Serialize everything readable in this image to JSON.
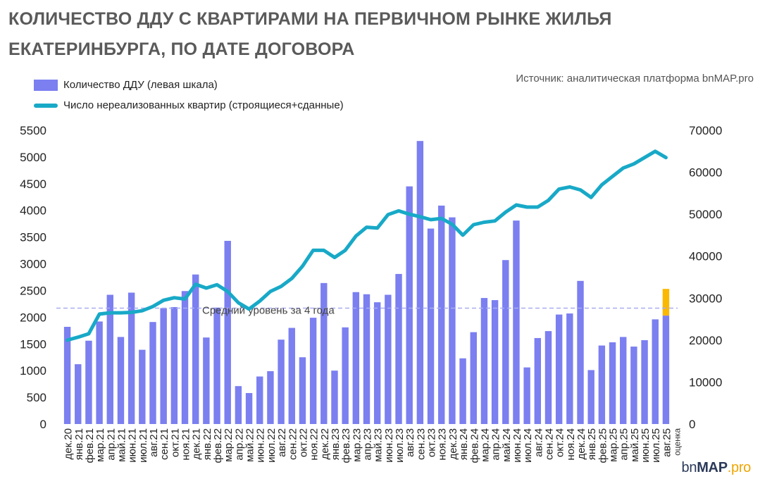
{
  "header": {
    "title_line1": "КОЛИЧЕСТВО ДДУ С КВАРТИРАМИ НА ПЕРВИЧНОМ РЫНКЕ ЖИЛЬЯ",
    "title_line2": "ЕКАТЕРИНБУРГА, ПО ДАТЕ ДОГОВОРА",
    "source": "Источник: аналитическая платформа bnMAP.pro"
  },
  "logo": {
    "prefix": "bn",
    "bold": "MAP",
    "suffix": ".pro"
  },
  "colors": {
    "bar": "#7b7ff0",
    "line": "#18a9c7",
    "estimate": "#fbb800",
    "avg_line": "#a9acf0"
  },
  "chart_data": {
    "type": "bar+line",
    "categories": [
      "дек.20",
      "янв.21",
      "фев.21",
      "мар.21",
      "апр.21",
      "май.21",
      "июн.21",
      "июл.21",
      "авг.21",
      "сен.21",
      "окт.21",
      "ноя.21",
      "дек.21",
      "янв.22",
      "фев.22",
      "мар.22",
      "апр.22",
      "май.22",
      "июн.22",
      "июл.22",
      "авг.22",
      "сен.22",
      "окт.22",
      "ноя.22",
      "дек.22",
      "янв.23",
      "фев.23",
      "мар.23",
      "апр.23",
      "май.23",
      "июн.23",
      "июл.23",
      "авг.23",
      "сен.23",
      "окт.23",
      "ноя.23",
      "дек.23",
      "янв.24",
      "фев.24",
      "мар.24",
      "апр.24",
      "май.24",
      "июн.24",
      "июл.24",
      "авг.24",
      "сен.24",
      "окт.24",
      "ноя.24",
      "дек.24",
      "янв.25",
      "фев.25",
      "мар.25",
      "апр.25",
      "май.25",
      "июн.25",
      "июл.25",
      "авг.25"
    ],
    "last_label_note": "оценка",
    "series": [
      {
        "name": "Количество ДДУ (левая шкала)",
        "type": "bar",
        "axis": "left",
        "values": [
          1820,
          1120,
          1560,
          1920,
          2420,
          1630,
          2460,
          1390,
          1910,
          2170,
          2190,
          2490,
          2800,
          1620,
          2180,
          3430,
          710,
          580,
          890,
          990,
          1580,
          1800,
          1250,
          1990,
          2640,
          1000,
          1810,
          2470,
          2430,
          2280,
          2420,
          2810,
          4450,
          5300,
          3660,
          4090,
          3870,
          1230,
          1720,
          2360,
          2320,
          3070,
          3810,
          1060,
          1610,
          1740,
          2050,
          2070,
          2680,
          1010,
          1470,
          1530,
          1630,
          1450,
          1570,
          1960,
          2030
        ]
      },
      {
        "name": "Оценка",
        "type": "bar-stacked",
        "axis": "left",
        "values": [
          0,
          0,
          0,
          0,
          0,
          0,
          0,
          0,
          0,
          0,
          0,
          0,
          0,
          0,
          0,
          0,
          0,
          0,
          0,
          0,
          0,
          0,
          0,
          0,
          0,
          0,
          0,
          0,
          0,
          0,
          0,
          0,
          0,
          0,
          0,
          0,
          0,
          0,
          0,
          0,
          0,
          0,
          0,
          0,
          0,
          0,
          0,
          0,
          0,
          0,
          0,
          0,
          0,
          0,
          0,
          0,
          500
        ]
      },
      {
        "name": "Число нереализованных квартир (строящиеся+сданные)",
        "type": "line",
        "axis": "right",
        "values": [
          20000,
          20700,
          21500,
          26200,
          26500,
          26500,
          26600,
          27000,
          28000,
          29500,
          30100,
          29800,
          33300,
          32400,
          33200,
          31600,
          28900,
          27400,
          29300,
          31600,
          32800,
          34700,
          37600,
          41400,
          41400,
          39700,
          41400,
          44800,
          46900,
          46700,
          49900,
          50800,
          50000,
          49400,
          48700,
          49000,
          47600,
          45000,
          47500,
          48100,
          48400,
          50500,
          52200,
          51700,
          51700,
          53300,
          56000,
          56500,
          55800,
          54000,
          57000,
          59000,
          61000,
          62000,
          63500,
          65000,
          63500
        ]
      }
    ],
    "average": {
      "label": "Средний уровень за 4 года",
      "value": 2170
    },
    "yleft": {
      "min": 0,
      "max": 5500,
      "ticks": [
        0,
        500,
        1000,
        1500,
        2000,
        2500,
        3000,
        3500,
        4000,
        4500,
        5000,
        5500
      ]
    },
    "yright": {
      "min": 0,
      "max": 70000,
      "ticks": [
        0,
        10000,
        20000,
        30000,
        40000,
        50000,
        60000,
        70000
      ]
    },
    "legend": [
      "Количество ДДУ (левая шкала)",
      "Число нереализованных квартир (строящиеся+сданные)"
    ]
  }
}
